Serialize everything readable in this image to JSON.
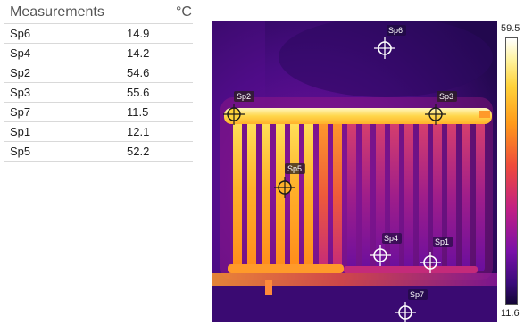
{
  "panel": {
    "title": "Measurements",
    "unit": "°C",
    "rows": [
      {
        "name": "Sp6",
        "value": "14.9"
      },
      {
        "name": "Sp4",
        "value": "14.2"
      },
      {
        "name": "Sp2",
        "value": "54.6"
      },
      {
        "name": "Sp3",
        "value": "55.6"
      },
      {
        "name": "Sp7",
        "value": "11.5"
      },
      {
        "name": "Sp1",
        "value": "12.1"
      },
      {
        "name": "Sp5",
        "value": "52.2"
      }
    ]
  },
  "scale": {
    "max": "59.5",
    "min": "11.6",
    "colors": [
      "#ffffff",
      "#fff3a0",
      "#ffd23a",
      "#ff9a1a",
      "#ee4a3c",
      "#c21f84",
      "#7a10a8",
      "#3a0a7a",
      "#120633"
    ]
  },
  "spots": {
    "sp6": {
      "label": "Sp6",
      "hot": false
    },
    "sp2": {
      "label": "Sp2",
      "hot": true
    },
    "sp3": {
      "label": "Sp3",
      "hot": true
    },
    "sp5": {
      "label": "Sp5",
      "hot": true
    },
    "sp4": {
      "label": "Sp4",
      "hot": false
    },
    "sp1": {
      "label": "Sp1",
      "hot": false
    },
    "sp7": {
      "label": "Sp7",
      "hot": false
    }
  }
}
